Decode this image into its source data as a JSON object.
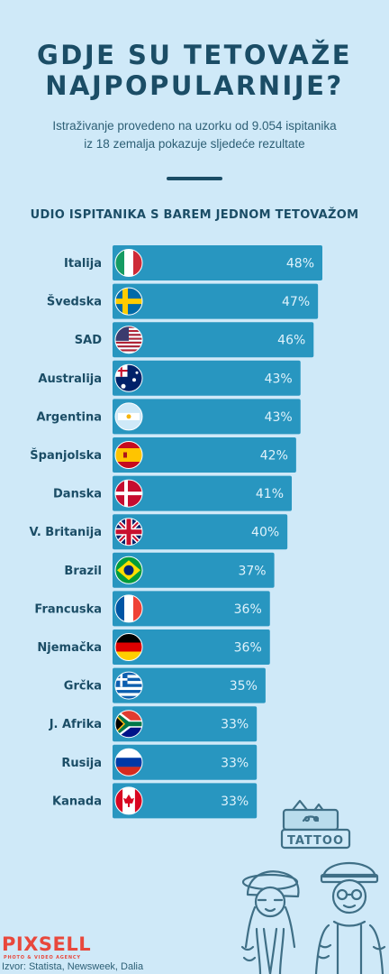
{
  "header": {
    "title_line1": "GDJE SU TETOVAŽE",
    "title_line2": "NAJPOPULARNIJE?",
    "subtitle_line1": "Istraživanje provedeno na uzorku od 9.054 ispitanika",
    "subtitle_line2": "iz 18 zemalja pokazuje sljedeće rezultate"
  },
  "section_title": "UDIO ISPITANIKA S BAREM JEDNOM TETOVAŽOM",
  "colors": {
    "bar": "#2896c0",
    "background": "#cfe9f8",
    "text": "#1b4d66"
  },
  "chart_data": {
    "type": "bar",
    "orientation": "horizontal",
    "title": "UDIO ISPITANIKA S BAREM JEDNOM TETOVAŽOM",
    "categories": [
      "Italija",
      "Švedska",
      "SAD",
      "Australija",
      "Argentina",
      "Španjolska",
      "Danska",
      "V. Britanija",
      "Brazil",
      "Francuska",
      "Njemačka",
      "Grčka",
      "J. Afrika",
      "Rusija",
      "Kanada"
    ],
    "values": [
      48,
      47,
      46,
      43,
      43,
      42,
      41,
      40,
      37,
      36,
      36,
      35,
      33,
      33,
      33
    ],
    "value_labels": [
      "48%",
      "47%",
      "46%",
      "43%",
      "43%",
      "42%",
      "41%",
      "40%",
      "37%",
      "36%",
      "36%",
      "35%",
      "33%",
      "33%",
      "33%"
    ],
    "flags": [
      "italy-flag",
      "sweden-flag",
      "usa-flag",
      "australia-flag",
      "argentina-flag",
      "spain-flag",
      "denmark-flag",
      "uk-flag",
      "brazil-flag",
      "france-flag",
      "germany-flag",
      "greece-flag",
      "south-africa-flag",
      "russia-flag",
      "canada-flag"
    ],
    "unit": "%"
  },
  "footer": {
    "logo": "PIXSELL",
    "logo_sub": "PHOTO & VIDEO AGENCY",
    "source": "Izvor: Statista, Newsweek, Dalia"
  },
  "illustration": {
    "sign_text": "TATTOO"
  }
}
